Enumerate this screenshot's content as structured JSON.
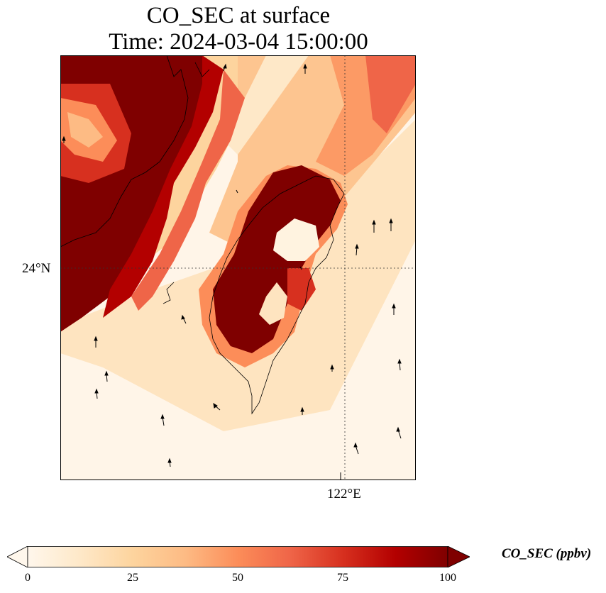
{
  "title_line1": "CO_SEC at surface",
  "title_line2": "Time: 2024-03-04 15:00:00",
  "axes": {
    "lat_tick": "24°N",
    "lon_tick": "122°E"
  },
  "colorbar": {
    "label": "CO_SEC (ppbv)",
    "ticks": [
      "0",
      "25",
      "50",
      "75",
      "100"
    ],
    "range": [
      0,
      100
    ],
    "colormap": "OrRd",
    "extend": "both",
    "stops": [
      "#fff7ec",
      "#fee8c8",
      "#fdd49e",
      "#fdbb84",
      "#fc8d59",
      "#ef6548",
      "#d7301f",
      "#b30000",
      "#7f0000"
    ]
  },
  "map_layers": {
    "field": "CO_SEC concentration",
    "overlays": [
      "coastlines",
      "wind vectors",
      "gridlines"
    ]
  }
}
